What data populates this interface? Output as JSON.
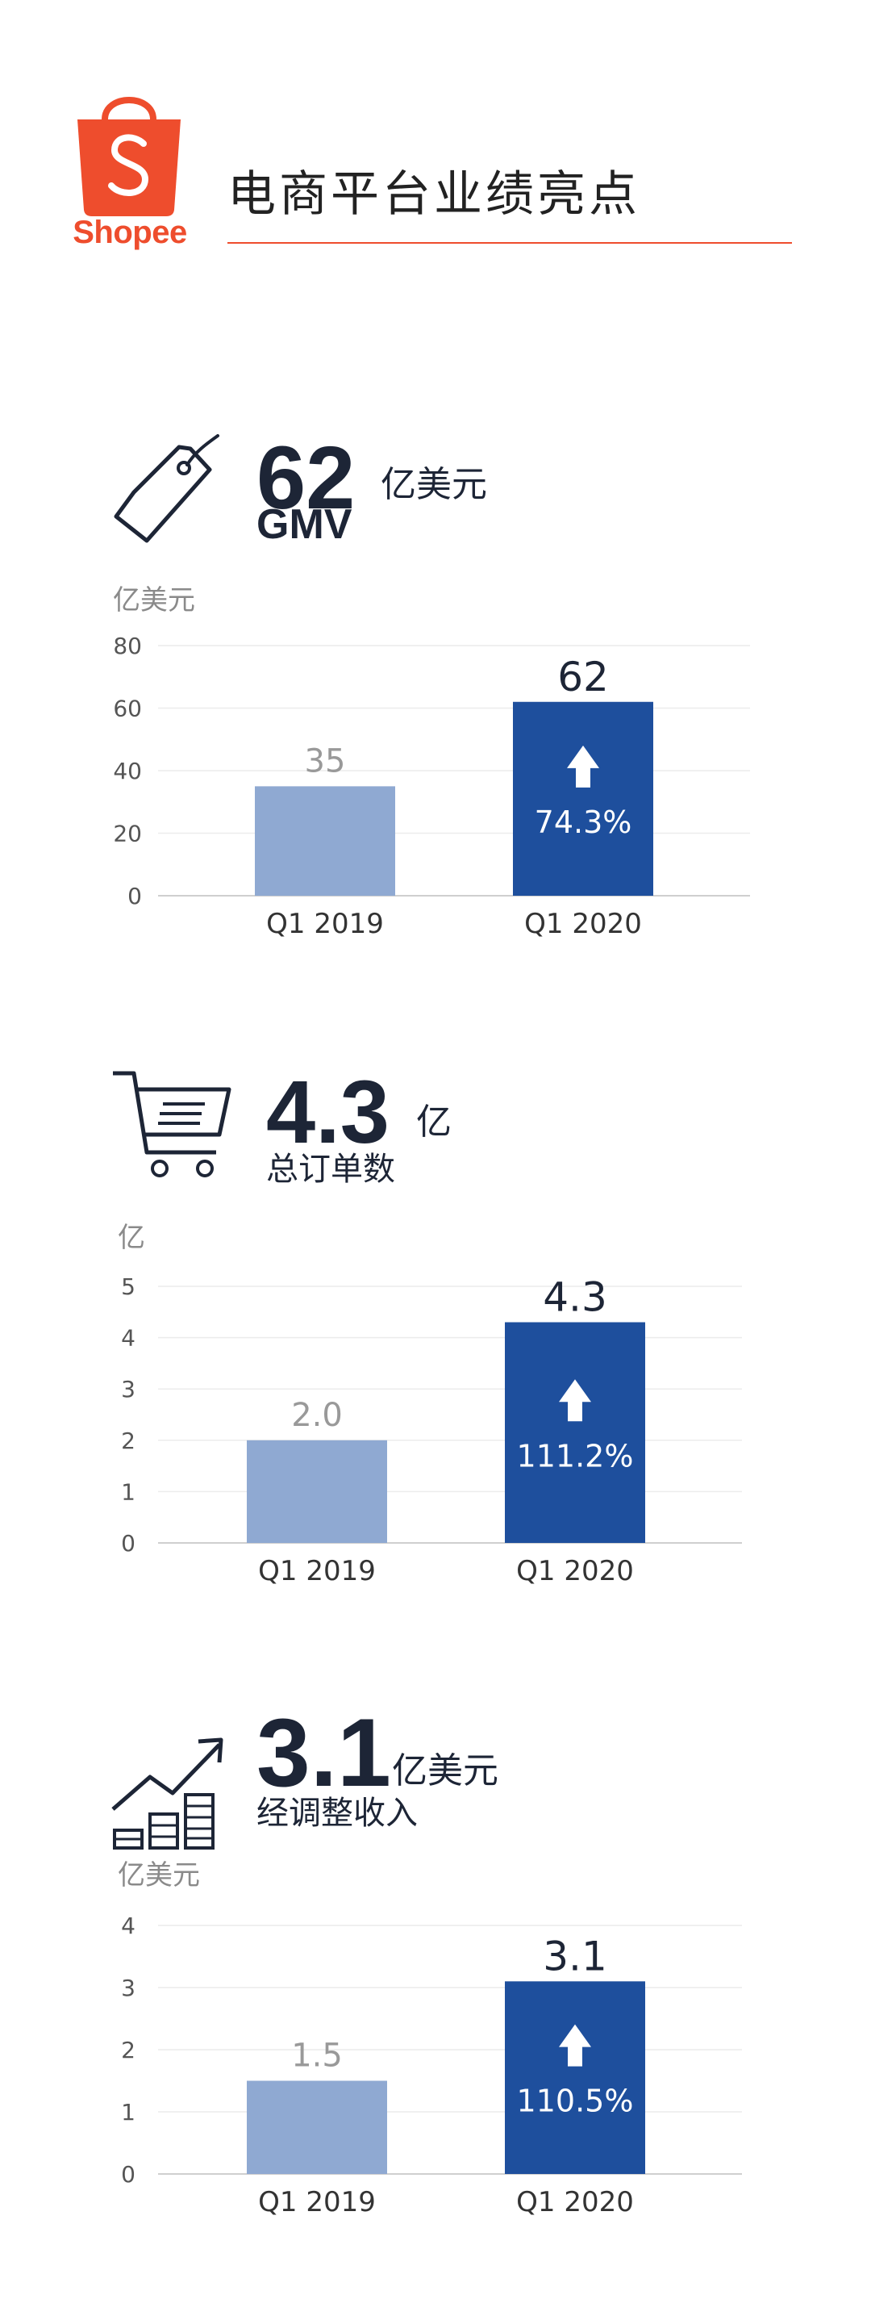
{
  "brand": {
    "name": "Shopee",
    "color": "#ee4d2d"
  },
  "page_title": "电商平台业绩亮点",
  "sections": [
    {
      "icon": "price-tag-icon",
      "big_number": "62",
      "unit": "亿美元",
      "metric": "GMV",
      "chart_unit": "亿美元"
    },
    {
      "icon": "shopping-cart-icon",
      "big_number": "4.3",
      "unit": "亿",
      "metric": "总订单数",
      "chart_unit": "亿"
    },
    {
      "icon": "growth-chart-icon",
      "big_number": "3.1",
      "unit": "亿美元",
      "metric": "经调整收入",
      "chart_unit": "亿美元"
    }
  ],
  "chart_data": [
    {
      "type": "bar",
      "categories": [
        "Q1 2019",
        "Q1 2020"
      ],
      "values": [
        35,
        62
      ],
      "value_labels": [
        "35",
        "62"
      ],
      "growth_label": "74.3%",
      "ylabel": "亿美元",
      "ylim": [
        0,
        80
      ],
      "yticks": [
        0,
        20,
        40,
        60,
        80
      ],
      "grid": true,
      "colors": [
        "#8fa9d2",
        "#1e4f9d"
      ]
    },
    {
      "type": "bar",
      "categories": [
        "Q1 2019",
        "Q1 2020"
      ],
      "values": [
        2.0,
        4.3
      ],
      "value_labels": [
        "2.0",
        "4.3"
      ],
      "growth_label": "111.2%",
      "ylabel": "亿",
      "ylim": [
        0,
        5
      ],
      "yticks": [
        0,
        1,
        2,
        3,
        4,
        5
      ],
      "grid": true,
      "colors": [
        "#8fa9d2",
        "#1e4f9d"
      ]
    },
    {
      "type": "bar",
      "categories": [
        "Q1 2019",
        "Q1 2020"
      ],
      "values": [
        1.5,
        3.1
      ],
      "value_labels": [
        "1.5",
        "3.1"
      ],
      "growth_label": "110.5%",
      "ylabel": "亿美元",
      "ylim": [
        0,
        4
      ],
      "yticks": [
        0,
        1,
        2,
        3,
        4
      ],
      "grid": true,
      "colors": [
        "#8fa9d2",
        "#1e4f9d"
      ]
    }
  ]
}
